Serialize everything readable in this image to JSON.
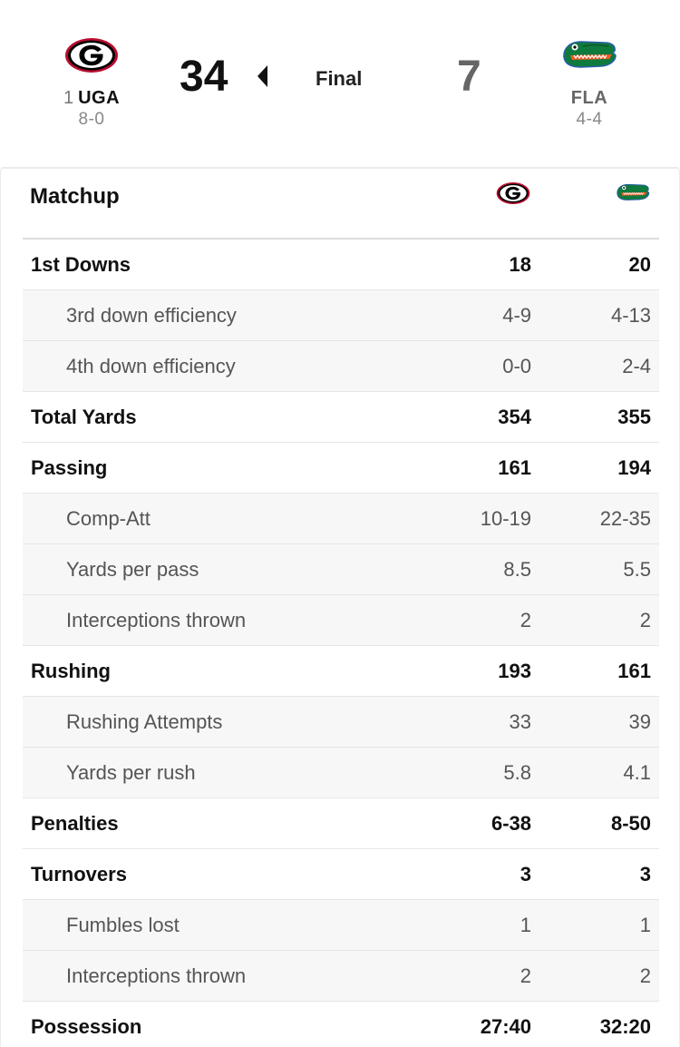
{
  "game": {
    "status": "Final",
    "home": {
      "rank": "1",
      "abbr": "UGA",
      "record": "8-0",
      "score": "34",
      "logo": "georgia-g-logo"
    },
    "away": {
      "abbr": "FLA",
      "record": "4-4",
      "score": "7",
      "logo": "florida-gator-logo"
    }
  },
  "matchup": {
    "title": "Matchup",
    "rows": [
      {
        "label": "1st Downs",
        "home": "18",
        "away": "20"
      },
      {
        "label": "3rd down efficiency",
        "home": "4-9",
        "away": "4-13"
      },
      {
        "label": "4th down efficiency",
        "home": "0-0",
        "away": "2-4"
      },
      {
        "label": "Total Yards",
        "home": "354",
        "away": "355"
      },
      {
        "label": "Passing",
        "home": "161",
        "away": "194"
      },
      {
        "label": "Comp-Att",
        "home": "10-19",
        "away": "22-35"
      },
      {
        "label": "Yards per pass",
        "home": "8.5",
        "away": "5.5"
      },
      {
        "label": "Interceptions thrown",
        "home": "2",
        "away": "2"
      },
      {
        "label": "Rushing",
        "home": "193",
        "away": "161"
      },
      {
        "label": "Rushing Attempts",
        "home": "33",
        "away": "39"
      },
      {
        "label": "Yards per rush",
        "home": "5.8",
        "away": "4.1"
      },
      {
        "label": "Penalties",
        "home": "6-38",
        "away": "8-50"
      },
      {
        "label": "Turnovers",
        "home": "3",
        "away": "3"
      },
      {
        "label": "Fumbles lost",
        "home": "1",
        "away": "1"
      },
      {
        "label": "Interceptions thrown",
        "home": "2",
        "away": "2"
      },
      {
        "label": "Possession",
        "home": "27:40",
        "away": "32:20"
      }
    ]
  },
  "colors": {
    "uga_red": "#ba0c2f",
    "gator_green": "#0f7a3d",
    "gator_orange": "#f15a24",
    "gator_blue": "#2a5caa"
  }
}
